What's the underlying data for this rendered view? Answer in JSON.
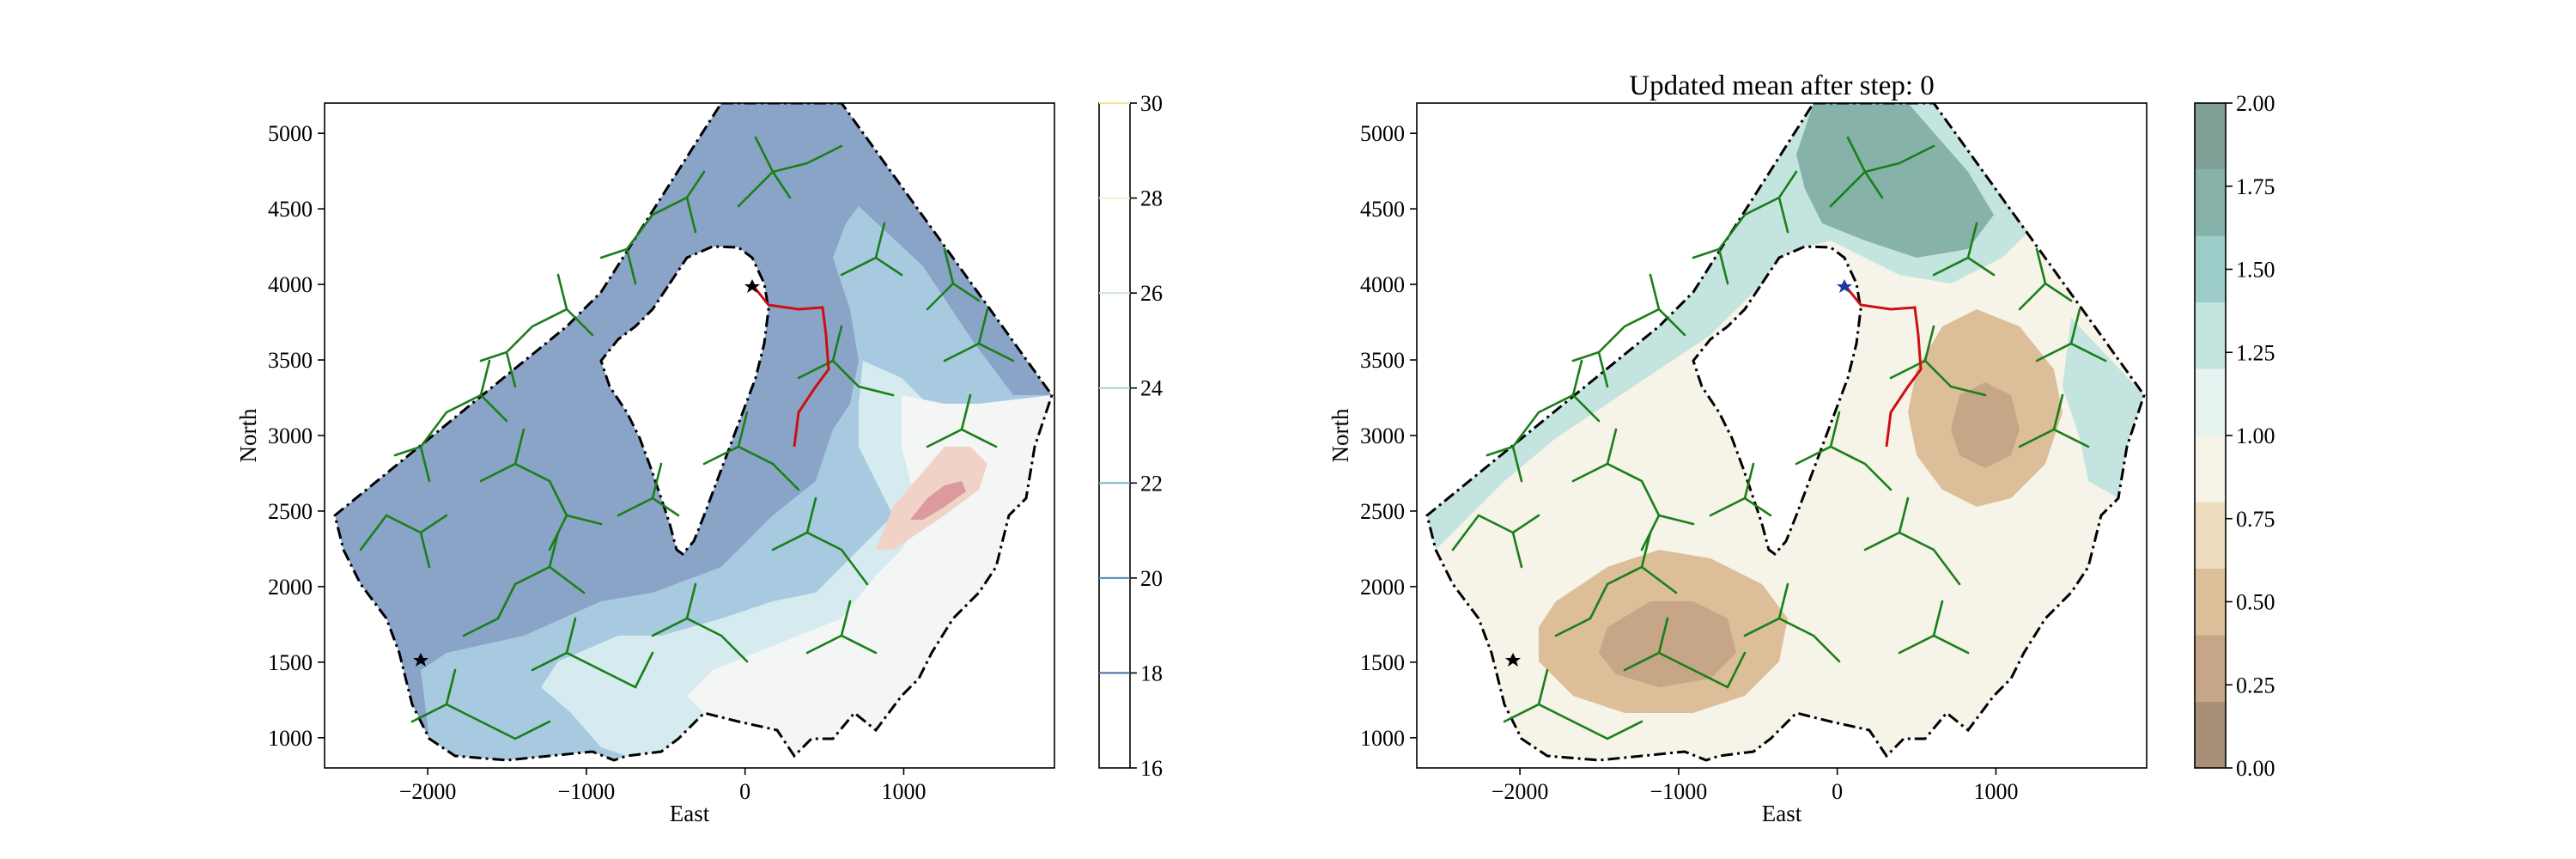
{
  "chart_data": [
    {
      "type": "heatmap",
      "title": "",
      "xlabel": "East",
      "ylabel": "North",
      "xlim": [
        -2650,
        1950
      ],
      "ylim": [
        800,
        5200
      ],
      "x_ticks": [
        -2000,
        -1000,
        0,
        1000
      ],
      "x_tick_labels": [
        "−2000",
        "−1000",
        "0",
        "1000"
      ],
      "y_ticks": [
        1000,
        1500,
        2000,
        2500,
        3000,
        3500,
        4000,
        4500,
        5000
      ],
      "y_tick_labels": [
        "1000",
        "1500",
        "2000",
        "2500",
        "3000",
        "3500",
        "4000",
        "4500",
        "5000"
      ],
      "colorbar": {
        "range": [
          16,
          30
        ],
        "ticks": [
          16,
          18,
          20,
          22,
          24,
          26,
          28,
          30
        ],
        "tick_labels": [
          "16",
          "18",
          "20",
          "22",
          "24",
          "26",
          "28",
          "30"
        ],
        "line_colors": [
          "#3f6e9c",
          "#4d8fb8",
          "#79b3c8",
          "#a6d4d6",
          "#cfe8d2",
          "#e9f0c4",
          "#f2e69a"
        ]
      },
      "regions": [
        {
          "name": "",
          "level": 17,
          "color": "#8aa4c7"
        },
        {
          "name": "",
          "level": 19,
          "color": "#a8cae0"
        },
        {
          "name": "",
          "level": 21,
          "color": "#d6ebef"
        },
        {
          "name": "",
          "level": 23,
          "color": "#f3f6f4"
        },
        {
          "name": "",
          "level": 27,
          "color": "#f1d2c7"
        },
        {
          "name": "",
          "level": 29,
          "color": "#dc9aa0"
        }
      ],
      "grid": false,
      "legend": "none"
    },
    {
      "type": "heatmap",
      "title": "Updated mean after step: 0",
      "xlabel": "East",
      "ylabel": "North",
      "xlim": [
        -2650,
        1950
      ],
      "ylim": [
        800,
        5200
      ],
      "x_ticks": [
        -2000,
        -1000,
        0,
        1000
      ],
      "x_tick_labels": [
        "−2000",
        "−1000",
        "0",
        "1000"
      ],
      "y_ticks": [
        1000,
        1500,
        2000,
        2500,
        3000,
        3500,
        4000,
        4500,
        5000
      ],
      "y_tick_labels": [
        "1000",
        "1500",
        "2000",
        "2500",
        "3000",
        "3500",
        "4000",
        "4500",
        "5000"
      ],
      "colorbar": {
        "range": [
          0,
          2
        ],
        "ticks": [
          0.0,
          0.25,
          0.5,
          0.75,
          1.0,
          1.25,
          1.5,
          1.75,
          2.0
        ],
        "tick_labels": [
          "0.00",
          "0.25",
          "0.50",
          "0.75",
          "1.00",
          "1.25",
          "1.50",
          "1.75",
          "2.00"
        ],
        "band_colors": [
          "#a88f78",
          "#c6a686",
          "#dcbf98",
          "#ecdbbe",
          "#f6f3e8",
          "#e6f3f0",
          "#c4e4df",
          "#9ccdc8",
          "#86b2aa",
          "#7f9f97"
        ]
      },
      "grid": false,
      "legend": "none"
    }
  ]
}
